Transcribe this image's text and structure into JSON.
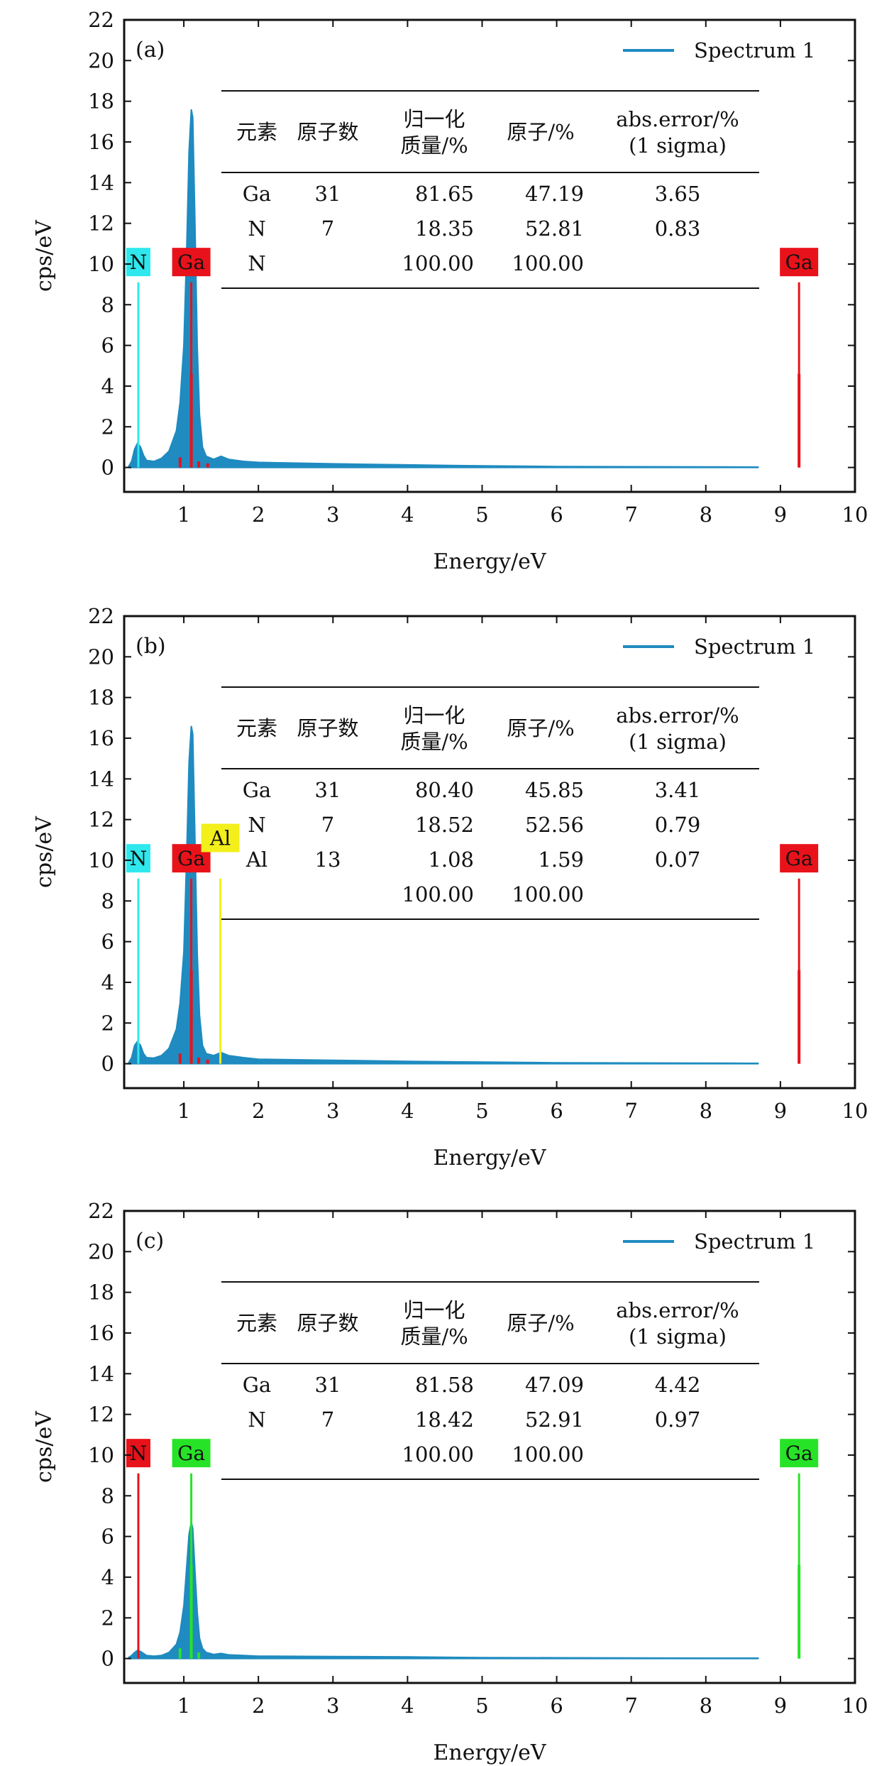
{
  "colors": {
    "spectrum": "#1f8bc0",
    "red": "#e8121b",
    "cyan": "#2fe8ee",
    "yellow": "#f2ef1b",
    "green": "#27e327",
    "frame": "#111111",
    "background": "#ffffff"
  },
  "chart_data": [
    {
      "type": "line",
      "panel_label": "(a)",
      "xlabel": "Energy/eV",
      "ylabel": "cps/eV",
      "xlim": [
        0.2,
        10
      ],
      "ylim": [
        -1.2,
        22
      ],
      "x_ticks": [
        "1",
        "2",
        "3",
        "4",
        "5",
        "6",
        "7",
        "8",
        "9",
        "10"
      ],
      "y_ticks": [
        "0",
        "2",
        "4",
        "6",
        "8",
        "10",
        "12",
        "14",
        "16",
        "18",
        "20",
        "22"
      ],
      "legend": "Spectrum 1",
      "legend_position": "top-right",
      "series": [
        {
          "name": "Spectrum 1",
          "x": [
            0.26,
            0.3,
            0.34,
            0.38,
            0.42,
            0.46,
            0.5,
            0.6,
            0.7,
            0.8,
            0.9,
            0.95,
            1.0,
            1.04,
            1.07,
            1.1,
            1.12,
            1.15,
            1.18,
            1.21,
            1.25,
            1.3,
            1.4,
            1.5,
            1.6,
            1.8,
            2.0,
            3.0,
            4.0,
            5.0,
            6.0,
            7.0,
            8.0,
            8.7
          ],
          "y": [
            0.05,
            0.3,
            0.9,
            1.2,
            1.0,
            0.6,
            0.35,
            0.3,
            0.45,
            0.8,
            1.8,
            3.2,
            6.0,
            11.0,
            15.5,
            17.6,
            17.2,
            12.0,
            6.0,
            2.6,
            1.0,
            0.55,
            0.4,
            0.55,
            0.4,
            0.3,
            0.25,
            0.18,
            0.13,
            0.08,
            0.05,
            0.04,
            0.03,
            0.02
          ]
        }
      ],
      "markers": [
        {
          "label": "N",
          "energy": 0.39,
          "color": "cyan"
        },
        {
          "label": "Ga",
          "energy": 1.1,
          "color": "red"
        },
        {
          "label": "Ga",
          "energy": 9.25,
          "color": "red"
        }
      ],
      "marker_height": 9.1,
      "element_lines": [
        {
          "energy": 1.1,
          "height": 4.6,
          "color": "red"
        },
        {
          "energy": 9.25,
          "height": 4.6,
          "color": "red"
        },
        {
          "energy": 0.95,
          "height": 0.5,
          "color": "red"
        },
        {
          "energy": 1.2,
          "height": 0.3,
          "color": "red"
        },
        {
          "energy": 1.32,
          "height": 0.2,
          "color": "red"
        }
      ],
      "table": {
        "headers": [
          "元素",
          "原子数",
          "归一化\n质量/%",
          "原子/%",
          "abs.error/%\n(1 sigma)"
        ],
        "rows": [
          [
            "Ga",
            "31",
            "81.65",
            "47.19",
            "3.65"
          ],
          [
            "N",
            "7",
            "18.35",
            "52.81",
            "0.83"
          ],
          [
            "N",
            "",
            "100.00",
            "100.00",
            ""
          ]
        ]
      }
    },
    {
      "type": "line",
      "panel_label": "(b)",
      "xlabel": "Energy/eV",
      "ylabel": "cps/eV",
      "xlim": [
        0.2,
        10
      ],
      "ylim": [
        -1.2,
        22
      ],
      "x_ticks": [
        "1",
        "2",
        "3",
        "4",
        "5",
        "6",
        "7",
        "8",
        "9",
        "10"
      ],
      "y_ticks": [
        "0",
        "2",
        "4",
        "6",
        "8",
        "10",
        "12",
        "14",
        "16",
        "18",
        "20",
        "22"
      ],
      "legend": "Spectrum 1",
      "legend_position": "top-right",
      "series": [
        {
          "name": "Spectrum 1",
          "x": [
            0.26,
            0.3,
            0.34,
            0.38,
            0.42,
            0.46,
            0.5,
            0.6,
            0.7,
            0.8,
            0.9,
            0.95,
            1.0,
            1.04,
            1.07,
            1.1,
            1.12,
            1.15,
            1.18,
            1.21,
            1.25,
            1.3,
            1.4,
            1.5,
            1.6,
            1.8,
            2.0,
            3.0,
            4.0,
            5.0,
            6.0,
            7.0,
            8.0,
            8.7
          ],
          "y": [
            0.05,
            0.3,
            0.9,
            1.1,
            0.9,
            0.5,
            0.3,
            0.28,
            0.4,
            0.75,
            1.7,
            3.0,
            5.5,
            10.5,
            14.8,
            16.6,
            16.2,
            11.0,
            5.5,
            2.4,
            0.9,
            0.5,
            0.4,
            0.55,
            0.4,
            0.3,
            0.22,
            0.17,
            0.12,
            0.08,
            0.05,
            0.04,
            0.03,
            0.02
          ]
        }
      ],
      "markers": [
        {
          "label": "N",
          "energy": 0.39,
          "color": "cyan"
        },
        {
          "label": "Ga",
          "energy": 1.1,
          "color": "red"
        },
        {
          "label": "Al",
          "energy": 1.49,
          "color": "yellow"
        },
        {
          "label": "Ga",
          "energy": 9.25,
          "color": "red"
        }
      ],
      "marker_height": 9.1,
      "element_lines": [
        {
          "energy": 1.1,
          "height": 4.6,
          "color": "red"
        },
        {
          "energy": 9.25,
          "height": 4.6,
          "color": "red"
        },
        {
          "energy": 0.95,
          "height": 0.5,
          "color": "red"
        },
        {
          "energy": 1.2,
          "height": 0.3,
          "color": "red"
        },
        {
          "energy": 1.32,
          "height": 0.2,
          "color": "red"
        }
      ],
      "table": {
        "headers": [
          "元素",
          "原子数",
          "归一化\n质量/%",
          "原子/%",
          "abs.error/%\n(1 sigma)"
        ],
        "rows": [
          [
            "Ga",
            "31",
            "80.40",
            "45.85",
            "3.41"
          ],
          [
            "N",
            "7",
            "18.52",
            "52.56",
            "0.79"
          ],
          [
            "Al",
            "13",
            "1.08",
            "1.59",
            "0.07"
          ],
          [
            "",
            "",
            "100.00",
            "100.00",
            ""
          ]
        ]
      }
    },
    {
      "type": "line",
      "panel_label": "(c)",
      "xlabel": "Energy/eV",
      "ylabel": "cps/eV",
      "xlim": [
        0.2,
        10
      ],
      "ylim": [
        -1.2,
        22
      ],
      "x_ticks": [
        "1",
        "2",
        "3",
        "4",
        "5",
        "6",
        "7",
        "8",
        "9",
        "10"
      ],
      "y_ticks": [
        "0",
        "2",
        "4",
        "6",
        "8",
        "10",
        "12",
        "14",
        "16",
        "18",
        "20",
        "22"
      ],
      "legend": "Spectrum 1",
      "legend_position": "top-right",
      "series": [
        {
          "name": "Spectrum 1",
          "x": [
            0.26,
            0.3,
            0.34,
            0.38,
            0.42,
            0.46,
            0.5,
            0.6,
            0.7,
            0.8,
            0.9,
            0.95,
            1.0,
            1.04,
            1.07,
            1.1,
            1.12,
            1.15,
            1.18,
            1.21,
            1.25,
            1.3,
            1.4,
            1.5,
            1.6,
            1.8,
            2.0,
            3.0,
            4.0,
            5.0,
            6.0,
            7.0,
            8.0,
            8.7
          ],
          "y": [
            0.05,
            0.15,
            0.3,
            0.4,
            0.35,
            0.25,
            0.15,
            0.12,
            0.15,
            0.3,
            0.7,
            1.3,
            2.6,
            4.6,
            6.1,
            6.7,
            6.4,
            4.3,
            2.3,
            1.0,
            0.5,
            0.3,
            0.2,
            0.25,
            0.18,
            0.15,
            0.12,
            0.1,
            0.08,
            0.05,
            0.04,
            0.03,
            0.02,
            0.02
          ]
        }
      ],
      "markers": [
        {
          "label": "N",
          "energy": 0.39,
          "color": "red"
        },
        {
          "label": "Ga",
          "energy": 1.1,
          "color": "green"
        },
        {
          "label": "Ga",
          "energy": 9.25,
          "color": "green"
        }
      ],
      "marker_height": 9.1,
      "element_lines": [
        {
          "energy": 1.1,
          "height": 4.6,
          "color": "green"
        },
        {
          "energy": 9.25,
          "height": 4.6,
          "color": "green"
        },
        {
          "energy": 0.95,
          "height": 0.5,
          "color": "green"
        },
        {
          "energy": 1.2,
          "height": 0.3,
          "color": "green"
        }
      ],
      "table": {
        "headers": [
          "元素",
          "原子数",
          "归一化\n质量/%",
          "原子/%",
          "abs.error/%\n(1 sigma)"
        ],
        "rows": [
          [
            "Ga",
            "31",
            "81.58",
            "47.09",
            "4.42"
          ],
          [
            "N",
            "7",
            "18.42",
            "52.91",
            "0.97"
          ],
          [
            "",
            "",
            "100.00",
            "100.00",
            ""
          ]
        ]
      }
    }
  ]
}
